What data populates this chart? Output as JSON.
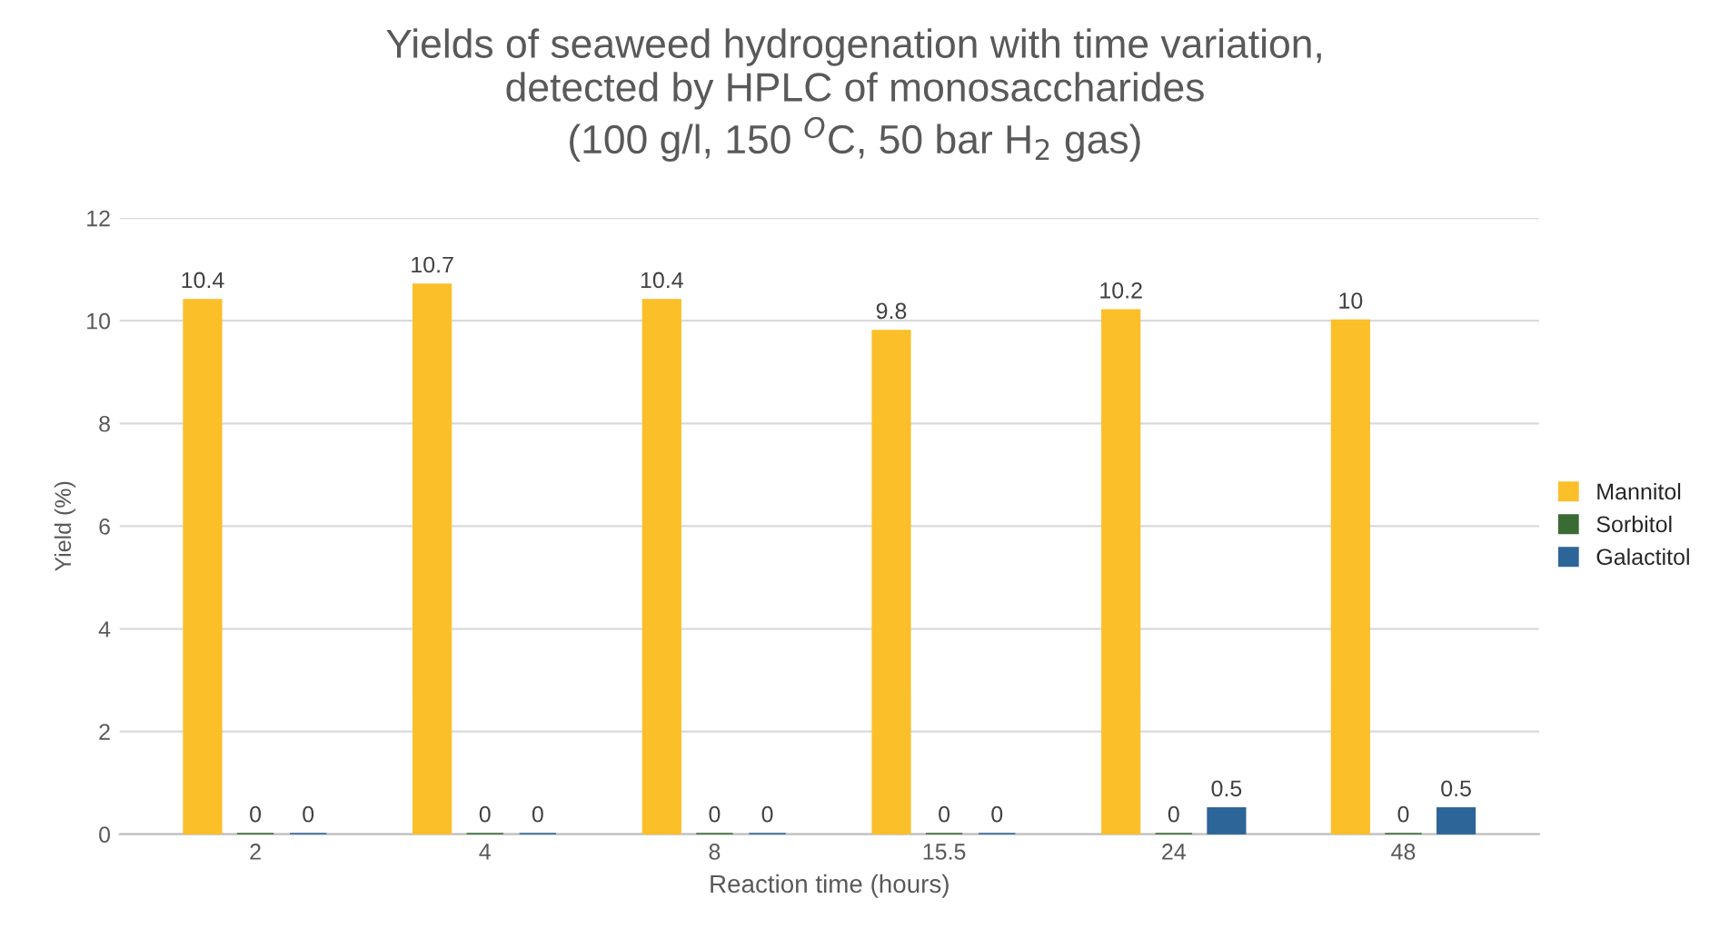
{
  "chart_data": {
    "type": "bar",
    "title": "Yields of seaweed hydrogenation with time variation,\ndetected by HPLC of monosaccharides\n(100 g/l, 150 $^{O}$C, 50 bar H$_{2}$ gas)",
    "xlabel": "Reaction time (hours)",
    "ylabel": "Yield (%)",
    "categories": [
      "2",
      "4",
      "8",
      "15.5",
      "24",
      "48"
    ],
    "series": [
      {
        "name": "Mannitol",
        "color": "#fbbf2a",
        "values": [
          10.4,
          10.7,
          10.4,
          9.8,
          10.2,
          10
        ]
      },
      {
        "name": "Sorbitol",
        "color": "#3a6b35",
        "values": [
          0,
          0,
          0,
          0,
          0,
          0
        ]
      },
      {
        "name": "Galactitol",
        "color": "#2e6599",
        "values": [
          0,
          0,
          0,
          0,
          0.5,
          0.5
        ]
      }
    ],
    "ylim": [
      0,
      12
    ],
    "yticks": [
      0,
      2,
      4,
      6,
      8,
      10,
      12
    ],
    "grid": "y",
    "legend": "right",
    "data_labels": true
  }
}
